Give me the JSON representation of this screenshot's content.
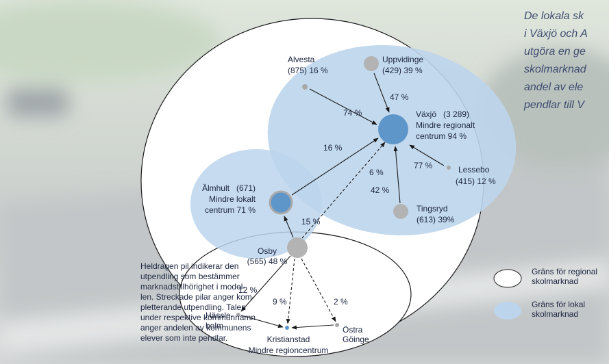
{
  "quote": [
    "De lokala sk",
    "i Växjö och A",
    "utgöra en ge",
    "skolmarknad",
    "andel av ele",
    "pendlar till V"
  ],
  "nodes": [
    {
      "lines": [
        "Uppvidinge",
        "(429) 39 %"
      ]
    },
    {
      "lines": [
        "Alvesta",
        "(875) 16 %"
      ]
    },
    {
      "lines": [
        "Växjö   (3 289)",
        "Mindre regionalt",
        "centrum 94 %"
      ]
    },
    {
      "lines": [
        "Lessebo",
        "(415) 12 %"
      ]
    },
    {
      "lines": [
        "Tingsryd",
        "(613) 39%"
      ]
    },
    {
      "lines": [
        "Älmhult   (671)",
        "Mindre lokalt",
        "centrum 71 %"
      ]
    },
    {
      "lines": [
        "Osby",
        "(565) 48 %"
      ]
    },
    {
      "lines": [
        "Hässle-",
        "holm"
      ]
    },
    {
      "lines": [
        "Kristianstad",
        "Mindre regioncentrum"
      ]
    },
    {
      "lines": [
        "Östra",
        "Göinge"
      ]
    }
  ],
  "edges": [
    {
      "label": "47 %"
    },
    {
      "label": "74 %"
    },
    {
      "label": "77 %"
    },
    {
      "label": "42 %"
    },
    {
      "label": "16 %"
    },
    {
      "label": "6 %"
    },
    {
      "label": "15 %"
    },
    {
      "label": "12 %"
    },
    {
      "label": "9 %"
    },
    {
      "label": "2 %"
    }
  ],
  "legend": [
    {
      "lines": [
        "Gräns för regional",
        "skolmarknad"
      ]
    },
    {
      "lines": [
        "Gräns för lokal",
        "skolmarknad"
      ]
    }
  ],
  "note": [
    "Heldragen pil indikerar den",
    "utpendling som bestämmer",
    "marknadstillhörighet i model-",
    "len. Streckade pilar anger kom-",
    "pletterande utpendling. Talen",
    "under respektive kommunnamn",
    "anger andelen av kommunens",
    "elever som inte pendlar."
  ]
}
